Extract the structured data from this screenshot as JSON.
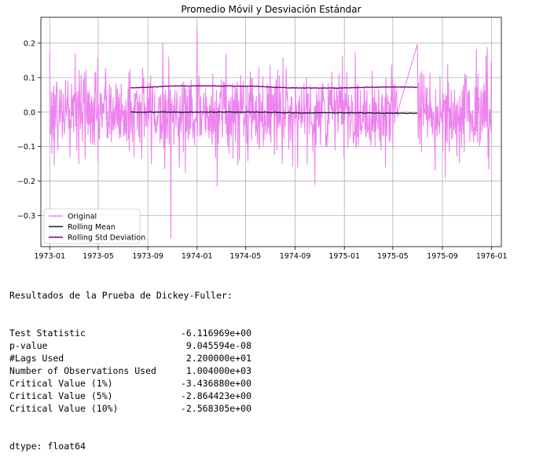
{
  "chart_data": {
    "type": "line",
    "title": "Promedio Móvil y Desviación Estándar",
    "xlabel": "",
    "ylabel": "",
    "x_range": [
      "1972-12-10",
      "1976-01-25"
    ],
    "ylim": [
      -0.39,
      0.275
    ],
    "grid": true,
    "legend_placement": "lower-left",
    "x_ticks": [
      "1973-01",
      "1973-05",
      "1973-09",
      "1974-01",
      "1974-05",
      "1974-09",
      "1975-01",
      "1975-05",
      "1975-09",
      "1976-01"
    ],
    "y_ticks": [
      0.2,
      0.1,
      0.0,
      -0.1,
      -0.2,
      -0.3
    ],
    "y_tick_labels": [
      "0.2",
      "0.1",
      "0.0",
      "−0.1",
      "−0.2",
      "−0.3"
    ],
    "series": [
      {
        "name": "Original",
        "color": "#ee82ee",
        "style": "noisy daily returns, mostly between -0.2 and 0.2",
        "points": [
          [
            "1973-01-01",
            0.175
          ],
          [
            "1973-01-05",
            0.06
          ],
          [
            "1973-01-12",
            -0.155
          ],
          [
            "1973-03-05",
            0.17
          ],
          [
            "1973-10-28",
            -0.365
          ],
          [
            "1974-01-01",
            0.25
          ],
          [
            "1974-02-20",
            -0.215
          ],
          [
            "1974-10-20",
            -0.21
          ],
          [
            "1975-05-14",
            0.005
          ],
          [
            "1975-07-01",
            0.197
          ],
          [
            "1975-07-03",
            -0.075
          ],
          [
            "1975-09-08",
            -0.19
          ],
          [
            "1975-12-25",
            -0.165
          ],
          [
            "1975-12-31",
            0.145
          ]
        ]
      },
      {
        "name": "Rolling Mean",
        "color": "#1f1f3a",
        "points": [
          [
            "1973-07-20",
            0.0
          ],
          [
            "1974-01-01",
            0.0
          ],
          [
            "1974-06-01",
            0.0
          ],
          [
            "1974-09-01",
            -0.002
          ],
          [
            "1975-01-01",
            -0.002
          ],
          [
            "1975-05-14",
            -0.003
          ],
          [
            "1975-07-01",
            -0.003
          ]
        ]
      },
      {
        "name": "Rolling Std Deviation",
        "color": "#800080",
        "points": [
          [
            "1973-07-20",
            0.07
          ],
          [
            "1973-09-15",
            0.073
          ],
          [
            "1973-11-01",
            0.076
          ],
          [
            "1974-02-01",
            0.076
          ],
          [
            "1974-06-01",
            0.075
          ],
          [
            "1974-07-15",
            0.072
          ],
          [
            "1974-09-01",
            0.07
          ],
          [
            "1975-01-01",
            0.07
          ],
          [
            "1975-03-01",
            0.072
          ],
          [
            "1975-05-14",
            0.073
          ],
          [
            "1975-07-01",
            0.072
          ]
        ]
      }
    ]
  },
  "output": {
    "heading": "Resultados de la Prueba de Dickey-Fuller:",
    "rows": [
      {
        "key": "Test Statistic",
        "value": "-6.116969e+00"
      },
      {
        "key": "p-value",
        "value": "9.045594e-08"
      },
      {
        "key": "#Lags Used",
        "value": "2.200000e+01"
      },
      {
        "key": "Number of Observations Used",
        "value": "1.004000e+03"
      },
      {
        "key": "Critical Value (1%)",
        "value": "-3.436880e+00"
      },
      {
        "key": "Critical Value (5%)",
        "value": "-2.864423e+00"
      },
      {
        "key": "Critical Value (10%)",
        "value": "-2.568305e+00"
      }
    ],
    "dtype": "dtype: float64"
  }
}
